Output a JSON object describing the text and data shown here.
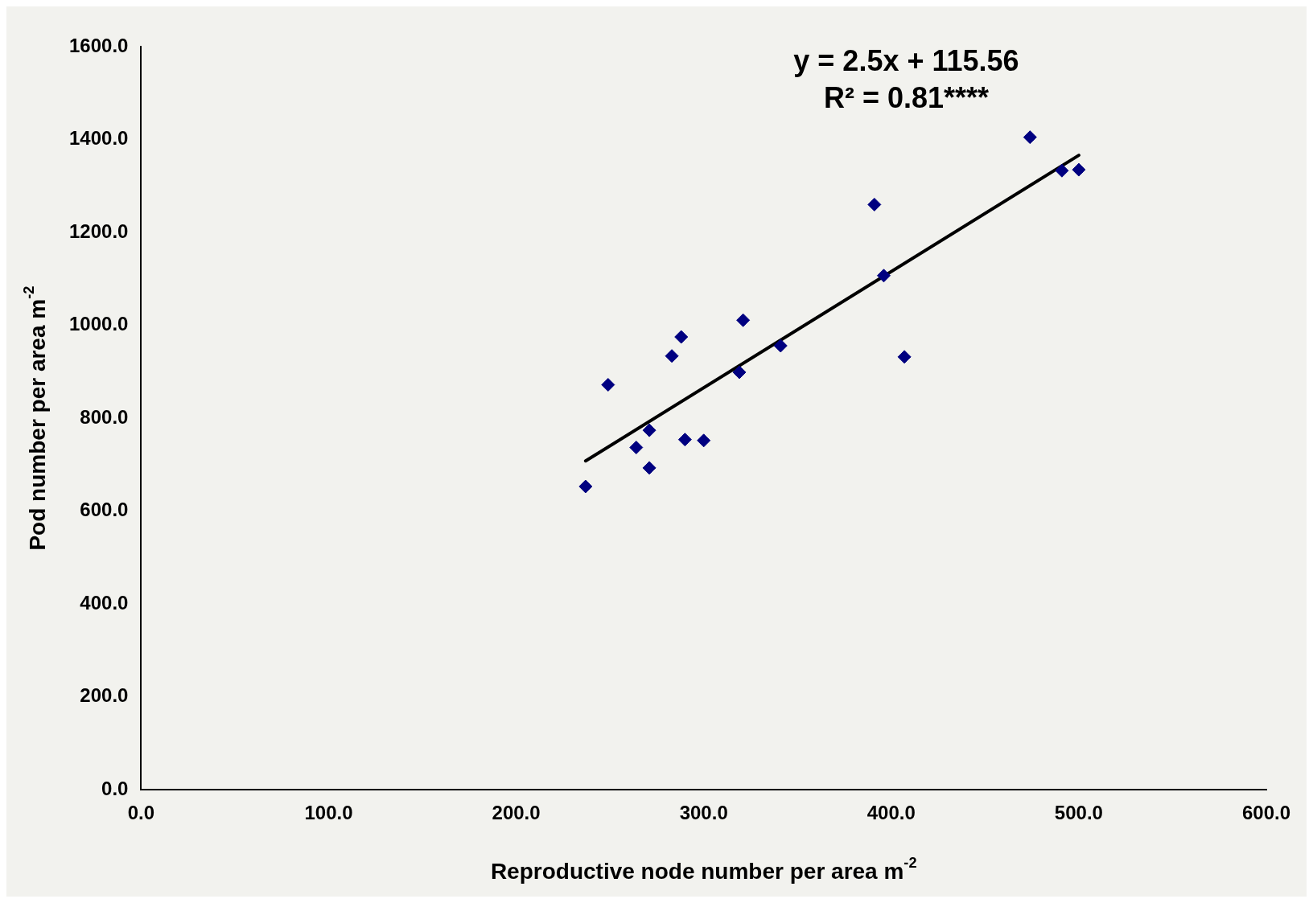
{
  "chart_data": {
    "type": "scatter",
    "xlabel": "Reproductive node number per area m$^{-2}$",
    "ylabel": "Pod number per area m$^{-2}$",
    "annotations": [
      "y = 2.5x + 115.56",
      "R² = 0.81****"
    ],
    "xlim": [
      0,
      600
    ],
    "ylim": [
      0,
      1600
    ],
    "xticks": [
      {
        "value": 0,
        "label": "0.0"
      },
      {
        "value": 100,
        "label": "100.0"
      },
      {
        "value": 200,
        "label": "200.0"
      },
      {
        "value": 300,
        "label": "300.0"
      },
      {
        "value": 400,
        "label": "400.0"
      },
      {
        "value": 500,
        "label": "500.0"
      },
      {
        "value": 600,
        "label": "600.0"
      }
    ],
    "yticks": [
      {
        "value": 0,
        "label": "0.0"
      },
      {
        "value": 200,
        "label": "200.0"
      },
      {
        "value": 400,
        "label": "400.0"
      },
      {
        "value": 600,
        "label": "600.0"
      },
      {
        "value": 800,
        "label": "800.0"
      },
      {
        "value": 1000,
        "label": "1000.0"
      },
      {
        "value": 1200,
        "label": "1200.0"
      },
      {
        "value": 1400,
        "label": "1400.0"
      },
      {
        "value": 1600,
        "label": "1600.0"
      }
    ],
    "grid": false,
    "legend": false,
    "series": [
      {
        "type": "scatter",
        "color": "#000080",
        "marker": "diamond",
        "x": [
          237,
          249,
          264,
          271,
          271,
          283,
          288,
          290,
          300,
          319,
          321,
          341,
          391,
          396,
          407,
          474,
          491,
          500
        ],
        "values": [
          653,
          872,
          737,
          774,
          693,
          934,
          975,
          754,
          752,
          899,
          1011,
          956,
          1260,
          1107,
          932,
          1405,
          1333,
          1335
        ]
      },
      {
        "type": "line",
        "color": "#000000",
        "marker": "none",
        "line_style": "solid",
        "x": [
          237,
          500
        ],
        "values": [
          708,
          1366
        ]
      }
    ]
  }
}
